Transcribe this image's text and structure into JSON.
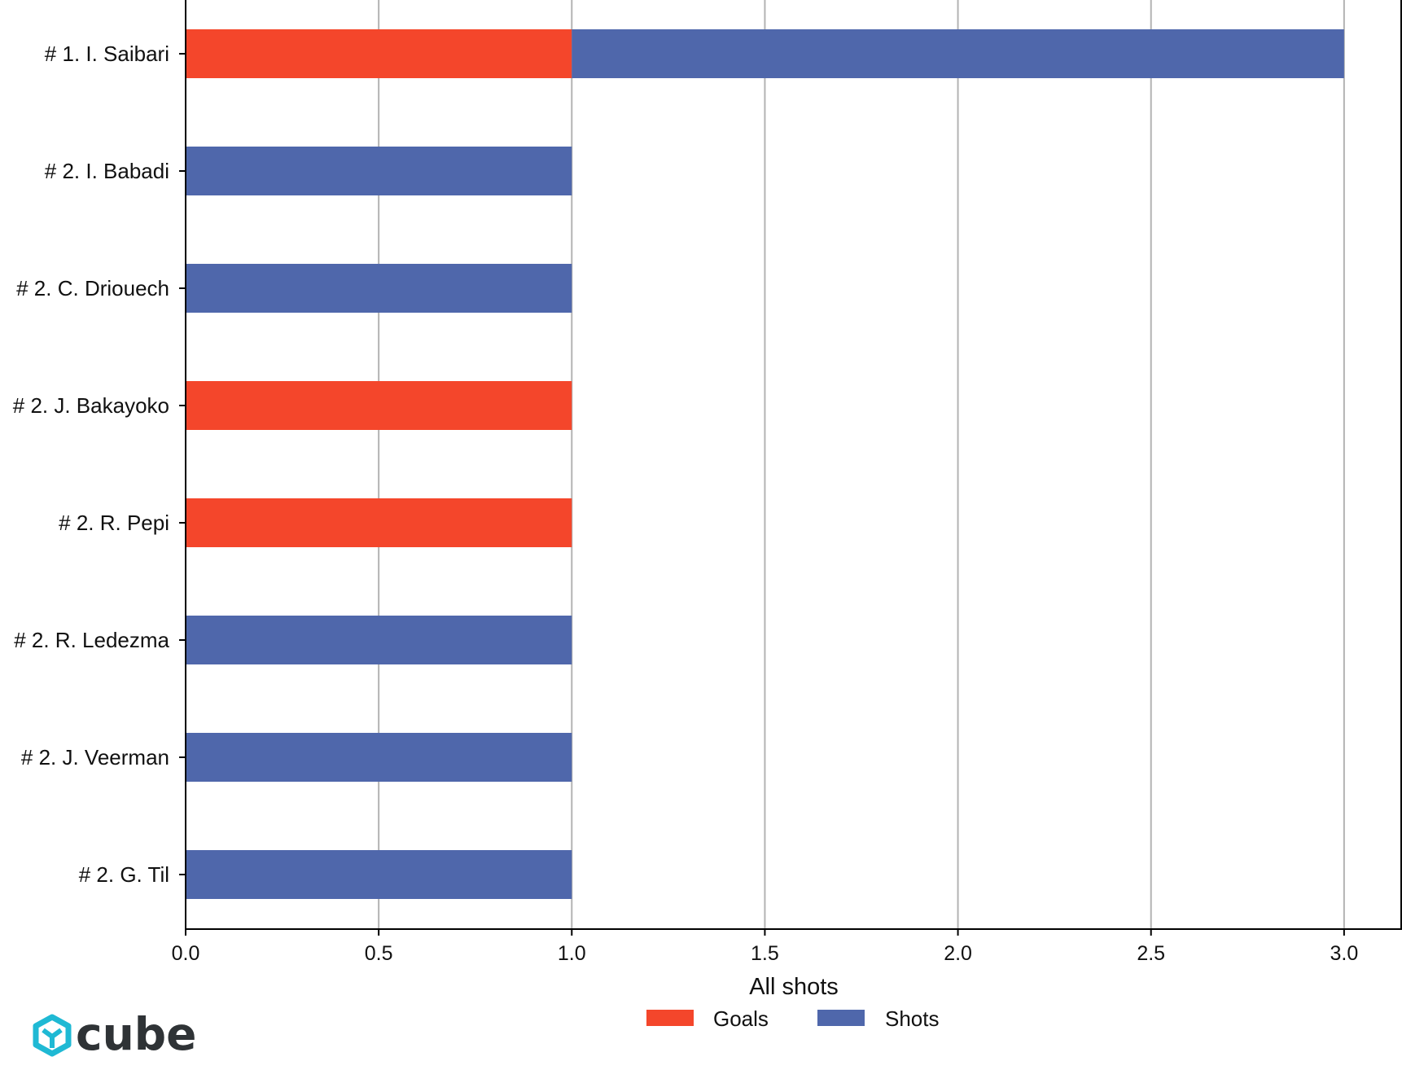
{
  "chart_data": {
    "type": "bar",
    "orientation": "horizontal",
    "stacked": true,
    "categories": [
      "# 1.  I. Saibari",
      "# 2.  I. Babadi",
      "# 2.  C. Driouech",
      "# 2.  J. Bakayoko",
      "# 2.  R. Pepi",
      "# 2.  R. Ledezma",
      "# 2.  J. Veerman",
      "# 2.  G. Til"
    ],
    "series": [
      {
        "name": "Goals",
        "color": "#f4462b",
        "values": [
          1,
          0,
          0,
          1,
          1,
          0,
          0,
          0
        ]
      },
      {
        "name": "Shots",
        "color": "#4f67ab",
        "values": [
          2,
          1,
          1,
          0,
          0,
          1,
          1,
          1
        ]
      }
    ],
    "xlabel": "All shots",
    "ylabel": "",
    "xlim": [
      0,
      3.15
    ],
    "xticks": [
      "0.0",
      "0.5",
      "1.0",
      "1.5",
      "2.0",
      "2.5",
      "3.0"
    ],
    "grid": "vertical",
    "legend_position": "bottom-center"
  },
  "logo": {
    "text": "cube",
    "icon": "cube-hexagon-icon",
    "accent_color": "#1fb9d4"
  }
}
